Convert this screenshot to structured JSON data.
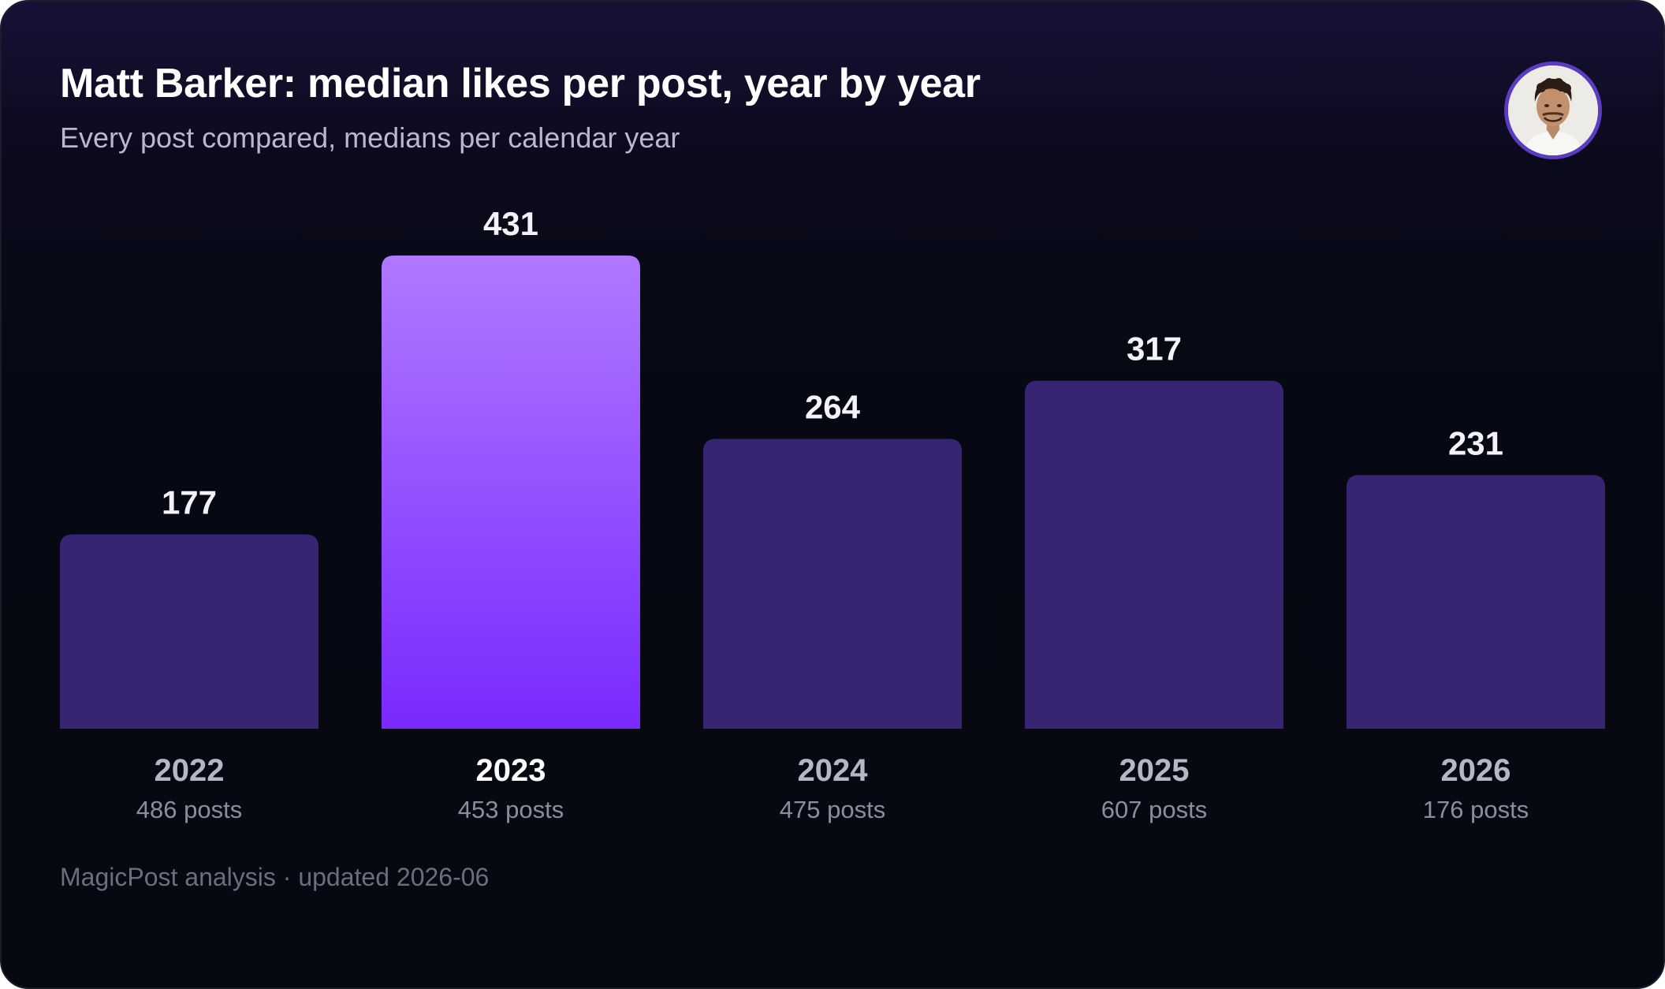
{
  "header": {
    "title": "Matt Barker: median likes per post, year by year",
    "subtitle": "Every post compared, medians per calendar year"
  },
  "footer": {
    "source": "MagicPost analysis · updated 2026-06"
  },
  "colors": {
    "bar": "#372574",
    "highlight_top": "#b078ff",
    "highlight_bottom": "#7a29ff",
    "value_label": "#f2f2f8",
    "year_label": "#b3b7c8",
    "year_label_highlight": "#ffffff",
    "count_label": "#8a8ea0"
  },
  "chart_data": {
    "type": "bar",
    "title": "Matt Barker: median likes per post, year by year",
    "subtitle": "Every post compared, medians per calendar year",
    "categories": [
      "2022",
      "2023",
      "2024",
      "2025",
      "2026"
    ],
    "values": [
      177,
      431,
      264,
      317,
      231
    ],
    "value_labels": [
      "177",
      "431",
      "264",
      "317",
      "231"
    ],
    "post_counts": [
      "486 posts",
      "453 posts",
      "475 posts",
      "607 posts",
      "176 posts"
    ],
    "highlight_index": 1,
    "ylim": [
      0,
      431
    ],
    "grid": false,
    "legend": "none"
  }
}
